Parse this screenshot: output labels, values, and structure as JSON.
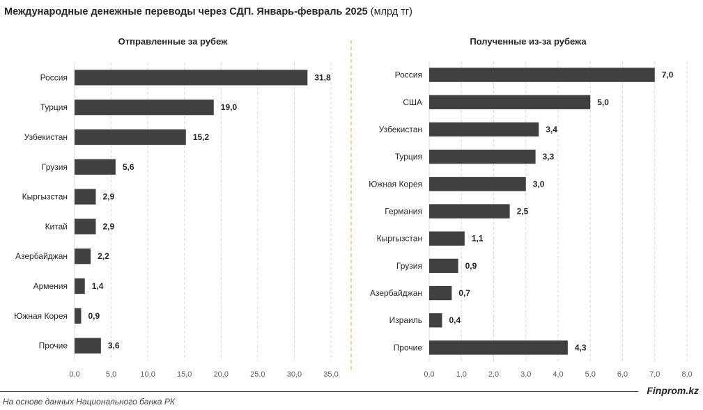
{
  "title": {
    "main": "Международные денежные переводы через СДП. Январь-февраль 2025",
    "unit": "(млрд тг)"
  },
  "footer": {
    "source": "На основе данных Национального банка РК",
    "brand": "Finprom.kz"
  },
  "colors": {
    "bar": "#404040",
    "grid": "#d9d9d9",
    "divider": "#f2c45a",
    "text": "#262626"
  },
  "chart_data": [
    {
      "type": "bar",
      "orientation": "horizontal",
      "title": "Отправленные за рубеж",
      "categories": [
        "Россия",
        "Турция",
        "Узбекистан",
        "Грузия",
        "Кыргызстан",
        "Китай",
        "Азербайджан",
        "Армения",
        "Южная Корея",
        "Прочие"
      ],
      "values": [
        31.8,
        19.0,
        15.2,
        5.6,
        2.9,
        2.9,
        2.2,
        1.4,
        0.9,
        3.6
      ],
      "value_labels": [
        "31,8",
        "19,0",
        "15,2",
        "5,6",
        "2,9",
        "2,9",
        "2,2",
        "1,4",
        "0,9",
        "3,6"
      ],
      "xlim": [
        0,
        35
      ],
      "ticks": [
        0,
        5,
        10,
        15,
        20,
        25,
        30,
        35
      ],
      "tick_labels": [
        "0,0",
        "5,0",
        "10,0",
        "15,0",
        "20,0",
        "25,0",
        "30,0",
        "35,0"
      ],
      "grid": true
    },
    {
      "type": "bar",
      "orientation": "horizontal",
      "title": "Полученные из-за рубежа",
      "categories": [
        "Россия",
        "США",
        "Узбекистан",
        "Турция",
        "Южная Корея",
        "Германия",
        "Кыргызстан",
        "Грузия",
        "Азербайджан",
        "Израиль",
        "Прочие"
      ],
      "values": [
        7.0,
        5.0,
        3.4,
        3.3,
        3.0,
        2.5,
        1.1,
        0.9,
        0.7,
        0.4,
        4.3
      ],
      "value_labels": [
        "7,0",
        "5,0",
        "3,4",
        "3,3",
        "3,0",
        "2,5",
        "1,1",
        "0,9",
        "0,7",
        "0,4",
        "4,3"
      ],
      "xlim": [
        0,
        8
      ],
      "ticks": [
        0,
        1,
        2,
        3,
        4,
        5,
        6,
        7,
        8
      ],
      "tick_labels": [
        "0,0",
        "1,0",
        "2,0",
        "3,0",
        "4,0",
        "5,0",
        "6,0",
        "7,0",
        "8,0"
      ],
      "grid": true
    }
  ]
}
